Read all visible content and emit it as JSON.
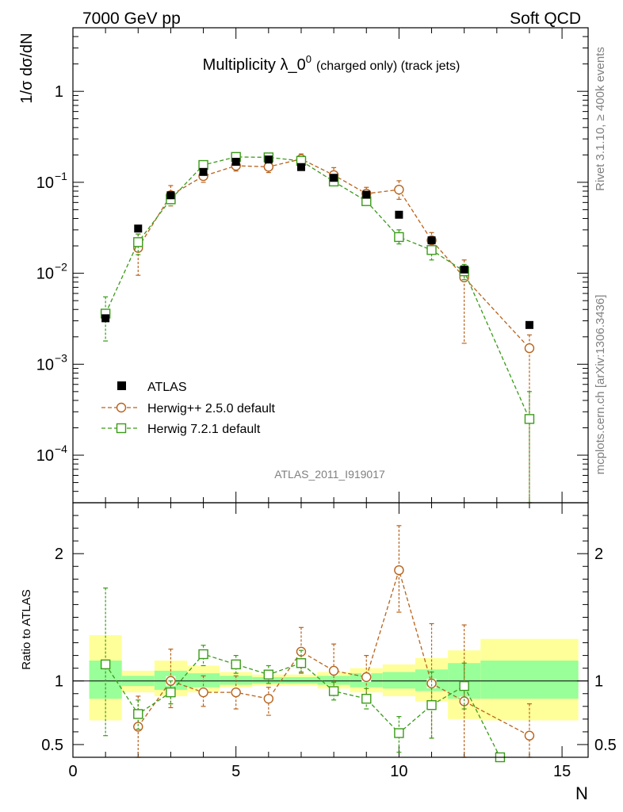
{
  "header": {
    "left": "7000 GeV pp",
    "right": "Soft QCD"
  },
  "side": {
    "rivet": "Rivet 3.1.10, ≥ 400k events",
    "mcplots": "mcplots.cern.ch [arXiv:1306.3436]"
  },
  "chart_data": {
    "type": "scatter",
    "title": "Multiplicity λ_0",
    "title_sup": "0",
    "title_small": "(charged only) (track jets)",
    "analysis_id": "ATLAS_2011_I919017",
    "xlabel": "N",
    "ylabel": "1/σ dσ/dN",
    "ratio_ylabel": "Ratio to ATLAS",
    "xlim": [
      0,
      15.8
    ],
    "ylim": [
      3e-05,
      5
    ],
    "ratio_ylim": [
      0.4,
      2.4
    ],
    "x_ticks": [
      "0",
      "5",
      "10",
      "15"
    ],
    "y_ticks": [
      {
        "base": "10",
        "exp": "−4",
        "value": 0.0001
      },
      {
        "base": "10",
        "exp": "−3",
        "value": 0.001
      },
      {
        "base": "10",
        "exp": "−2",
        "value": 0.01
      },
      {
        "base": "10",
        "exp": "−1",
        "value": 0.1
      },
      {
        "base": "1",
        "exp": "",
        "value": 1
      }
    ],
    "ratio_ticks": [
      {
        "label": "0.5",
        "value": 0.5
      },
      {
        "label": "1",
        "value": 1
      },
      {
        "label": "2",
        "value": 2
      }
    ],
    "legend": {
      "position": "mid-left",
      "entries": [
        {
          "label": "ATLAS",
          "series": "atlas"
        },
        {
          "label": "Herwig++ 2.5.0 default",
          "series": "herwigpp"
        },
        {
          "label": "Herwig 7.2.1 default",
          "series": "herwig7"
        }
      ]
    },
    "colors": {
      "atlas": "#000000",
      "herwigpp": "#b8621b",
      "herwig7": "#3a9b18",
      "band_inner": "#99ff99",
      "band_outer": "#ffff99"
    },
    "atlas": {
      "x": [
        1,
        2,
        3,
        4,
        5,
        6,
        7,
        8,
        9,
        10,
        11,
        12,
        14
      ],
      "y": [
        0.0032,
        0.031,
        0.072,
        0.13,
        0.168,
        0.178,
        0.147,
        0.112,
        0.073,
        0.044,
        0.023,
        0.011,
        0.0027
      ]
    },
    "herwigpp": {
      "x": [
        2,
        3,
        4,
        5,
        6,
        7,
        8,
        9,
        10,
        11,
        12,
        14
      ],
      "y": [
        0.019,
        0.072,
        0.117,
        0.152,
        0.148,
        0.18,
        0.12,
        0.075,
        0.083,
        0.023,
        0.009,
        0.0015
      ],
      "err_up": [
        0.027,
        0.092,
        0.135,
        0.172,
        0.168,
        0.205,
        0.145,
        0.088,
        0.104,
        0.028,
        0.014,
        0.0021
      ],
      "err_down": [
        0.0095,
        0.055,
        0.1,
        0.133,
        0.128,
        0.155,
        0.1,
        0.063,
        0.065,
        0.018,
        0.0017,
        3e-05
      ]
    },
    "herwig7": {
      "x": [
        1,
        2,
        3,
        4,
        5,
        6,
        7,
        8,
        9,
        10,
        11,
        12,
        14
      ],
      "y": [
        0.0036,
        0.022,
        0.065,
        0.155,
        0.19,
        0.188,
        0.172,
        0.102,
        0.062,
        0.025,
        0.018,
        0.0105,
        0.00025
      ],
      "err_up": [
        0.0055,
        0.027,
        0.075,
        0.17,
        0.202,
        0.2,
        0.182,
        0.112,
        0.068,
        0.03,
        0.022,
        0.0125,
        0.0005
      ],
      "err_down": [
        0.0018,
        0.016,
        0.058,
        0.14,
        0.176,
        0.175,
        0.16,
        0.092,
        0.056,
        0.021,
        0.014,
        0.0085,
        3e-05
      ]
    },
    "ratio_band": [
      {
        "x0": 0.5,
        "x1": 1.5,
        "inner": [
          0.86,
          1.16
        ],
        "outer": [
          0.69,
          1.36
        ]
      },
      {
        "x0": 1.5,
        "x1": 2.5,
        "inner": [
          0.96,
          1.04
        ],
        "outer": [
          0.91,
          1.08
        ]
      },
      {
        "x0": 2.5,
        "x1": 3.5,
        "inner": [
          0.93,
          1.08
        ],
        "outer": [
          0.88,
          1.16
        ]
      },
      {
        "x0": 3.5,
        "x1": 4.5,
        "inner": [
          0.95,
          1.06
        ],
        "outer": [
          0.91,
          1.12
        ]
      },
      {
        "x0": 4.5,
        "x1": 5.5,
        "inner": [
          0.97,
          1.04
        ],
        "outer": [
          0.95,
          1.07
        ]
      },
      {
        "x0": 5.5,
        "x1": 6.5,
        "inner": [
          0.98,
          1.03
        ],
        "outer": [
          0.96,
          1.05
        ]
      },
      {
        "x0": 6.5,
        "x1": 7.5,
        "inner": [
          0.98,
          1.03
        ],
        "outer": [
          0.96,
          1.05
        ]
      },
      {
        "x0": 7.5,
        "x1": 8.5,
        "inner": [
          0.97,
          1.04
        ],
        "outer": [
          0.94,
          1.07
        ]
      },
      {
        "x0": 8.5,
        "x1": 9.5,
        "inner": [
          0.95,
          1.06
        ],
        "outer": [
          0.91,
          1.1
        ]
      },
      {
        "x0": 9.5,
        "x1": 10.5,
        "inner": [
          0.94,
          1.07
        ],
        "outer": [
          0.88,
          1.13
        ]
      },
      {
        "x0": 10.5,
        "x1": 11.5,
        "inner": [
          0.92,
          1.09
        ],
        "outer": [
          0.84,
          1.18
        ]
      },
      {
        "x0": 11.5,
        "x1": 12.5,
        "inner": [
          0.86,
          1.14
        ],
        "outer": [
          0.7,
          1.24
        ]
      },
      {
        "x0": 12.5,
        "x1": 15.5,
        "inner": [
          0.86,
          1.16
        ],
        "outer": [
          0.69,
          1.33
        ]
      }
    ],
    "ratio_herwigpp": {
      "x": [
        2,
        3,
        4,
        5,
        6,
        7,
        8,
        9,
        10,
        11,
        12,
        14
      ],
      "y": [
        0.64,
        1.0,
        0.91,
        0.91,
        0.86,
        1.23,
        1.08,
        1.03,
        1.87,
        0.98,
        0.84,
        0.57
      ],
      "err_up": [
        0.88,
        1.25,
        1.04,
        1.04,
        0.95,
        1.42,
        1.29,
        1.2,
        2.22,
        1.45,
        1.44,
        0.82
      ],
      "err_down": [
        0.4,
        0.79,
        0.8,
        0.78,
        0.73,
        1.07,
        0.91,
        0.89,
        1.54,
        0.55,
        0.4,
        0.4
      ]
    },
    "ratio_herwig7": {
      "x": [
        1,
        2,
        3,
        4,
        5,
        6,
        7,
        8,
        9,
        10,
        11,
        12,
        13.1
      ],
      "y": [
        1.13,
        0.74,
        0.91,
        1.21,
        1.13,
        1.05,
        1.14,
        0.92,
        0.86,
        0.59,
        0.81,
        0.96,
        0.4
      ],
      "err_up": [
        1.73,
        0.85,
        1.0,
        1.28,
        1.2,
        1.12,
        1.24,
        0.99,
        0.94,
        0.72,
        1.07,
        1.14,
        0.4
      ],
      "err_down": [
        0.57,
        0.62,
        0.82,
        1.12,
        1.06,
        0.98,
        1.06,
        0.85,
        0.78,
        0.44,
        0.55,
        0.78,
        0.4
      ]
    }
  }
}
